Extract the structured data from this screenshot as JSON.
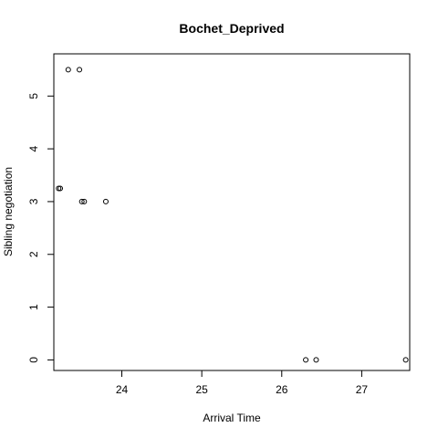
{
  "chart_data": {
    "type": "scatter",
    "title": "Bochet_Deprived",
    "xlabel": "Arrival Time",
    "ylabel": "Sibling negotiation",
    "xlim": [
      23.15,
      27.6
    ],
    "ylim": [
      -0.2,
      5.8
    ],
    "x_ticks": [
      24,
      25,
      26,
      27
    ],
    "y_ticks": [
      0,
      1,
      2,
      3,
      4,
      5
    ],
    "x_tick_labels": [
      "24",
      "25",
      "26",
      "27"
    ],
    "y_tick_labels": [
      "0",
      "1",
      "2",
      "3",
      "4",
      "5"
    ],
    "grid": false,
    "legend": "none",
    "marker": "open-circle",
    "marker_color": "#000000",
    "points": [
      {
        "x": 23.21,
        "y": 3.25
      },
      {
        "x": 23.23,
        "y": 3.25
      },
      {
        "x": 23.33,
        "y": 5.5
      },
      {
        "x": 23.47,
        "y": 5.5
      },
      {
        "x": 23.5,
        "y": 3.0
      },
      {
        "x": 23.53,
        "y": 3.0
      },
      {
        "x": 23.8,
        "y": 3.0
      },
      {
        "x": 26.3,
        "y": 0
      },
      {
        "x": 26.43,
        "y": 0
      },
      {
        "x": 27.55,
        "y": 0
      }
    ]
  }
}
